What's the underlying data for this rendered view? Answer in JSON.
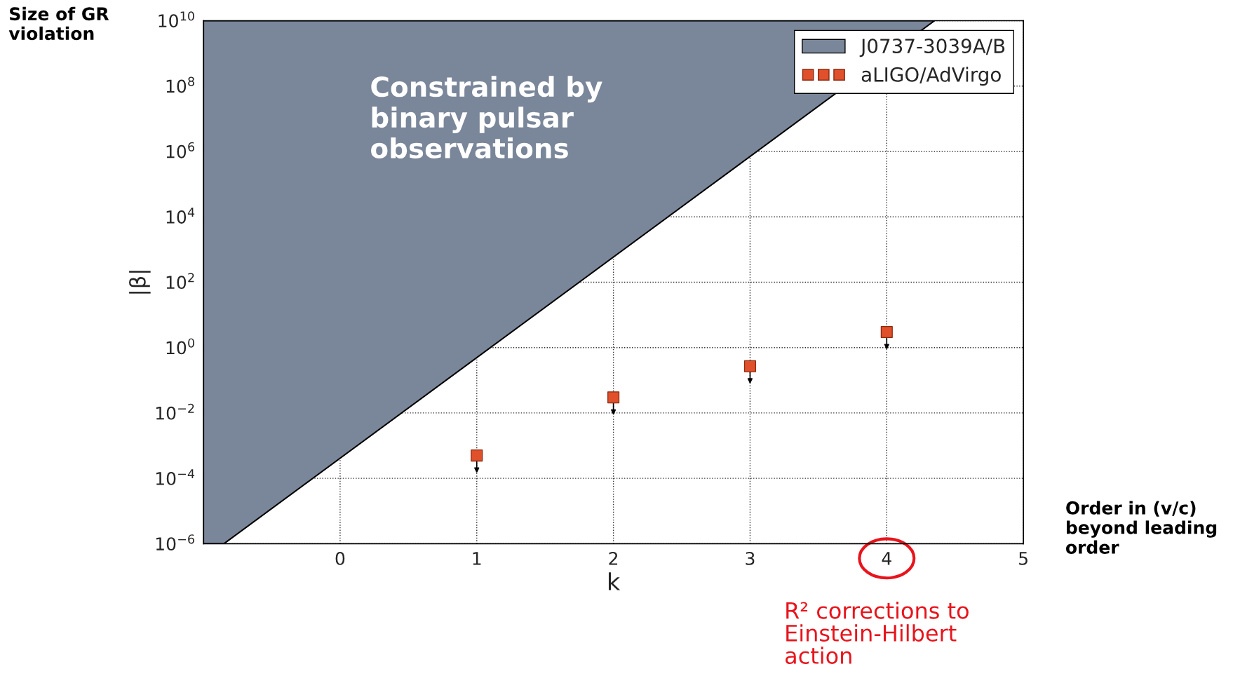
{
  "chart_data": {
    "type": "scatter",
    "xlabel": "k",
    "ylabel": "|β|",
    "log": "y",
    "xlim": [
      -1,
      5
    ],
    "xticks": [
      0,
      1,
      2,
      3,
      4,
      5
    ],
    "ylim": [
      1e-06,
      10000000000.0
    ],
    "yticks": [
      {
        "value": 1e-06,
        "label": "10$^{−6}$"
      },
      {
        "value": 0.0001,
        "label": "10$^{−4}$"
      },
      {
        "value": 0.01,
        "label": "10$^{−2}$"
      },
      {
        "value": 1,
        "label": "10$^{0}$"
      },
      {
        "value": 100,
        "label": "10$^{2}$"
      },
      {
        "value": 10000.0,
        "label": "10$^{4}$"
      },
      {
        "value": 1000000.0,
        "label": "10$^{6}$"
      },
      {
        "value": 100000000.0,
        "label": "10$^{8}$"
      },
      {
        "value": 10000000000.0,
        "label": "10$^{10}$"
      }
    ],
    "grid": true,
    "legend": "top right",
    "series": [
      {
        "name": "J0737-3039A/B",
        "type": "area",
        "color": "#7a8699",
        "x": [
          -1,
          -1,
          -0.85,
          4.35
        ],
        "values": [
          10000000000.0,
          1e-06,
          1e-06,
          10000000000.0
        ]
      },
      {
        "name": "aLIGO/AdVirgo",
        "marker": "square",
        "color": "#e0502a",
        "x": [
          1,
          2,
          3,
          4
        ],
        "values": [
          0.0005,
          0.03,
          0.27,
          3
        ]
      }
    ],
    "annotations": [
      "Size of GR\nviolation",
      "Order in (v/c)\nbeyond leading\norder",
      "Constrained by\nbinary pulsar\nobservations",
      "R² corrections to\nEinstein-Hilbert\naction"
    ]
  }
}
